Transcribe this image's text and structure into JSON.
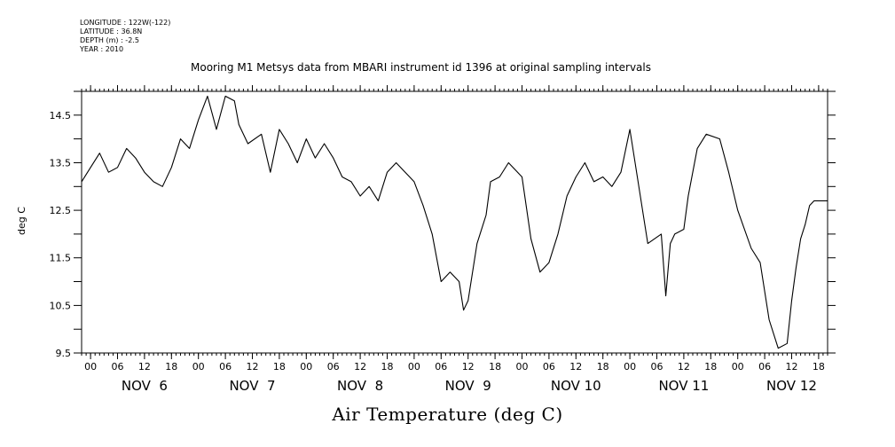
{
  "header": {
    "longitude": "LONGITUDE : 122W(-122)",
    "latitude": "LATITUDE : 36.8N",
    "depth": "DEPTH (m) : -2.5",
    "year": "YEAR : 2010"
  },
  "chart_data": {
    "type": "line",
    "title": "Mooring M1 Metsys data from MBARI instrument id 1396 at original sampling intervals",
    "xlabel": "Air Temperature (deg C)",
    "ylabel": "deg C",
    "ylim": [
      9.5,
      15.0
    ],
    "y_ticks": [
      "9.5",
      "10.5",
      "11.5",
      "12.5",
      "13.5",
      "14.5"
    ],
    "xlim_hours_from": "2010-11-05 22:00",
    "xlim": [
      "2010-11-05 22:00",
      "2010-11-12 20:00"
    ],
    "x_hour_ticks": [
      "00",
      "06",
      "12",
      "18",
      "00",
      "06",
      "12",
      "18",
      "00",
      "06",
      "12",
      "18",
      "00",
      "06",
      "12",
      "18",
      "00",
      "06",
      "12",
      "18",
      "00",
      "06",
      "12",
      "18",
      "00",
      "06",
      "12",
      "18"
    ],
    "day_labels": [
      "NOV  6",
      "NOV  7",
      "NOV  8",
      "NOV  9",
      "NOV 10",
      "NOV 11",
      "NOV 12"
    ],
    "grid": false,
    "legend": "none",
    "series": [
      {
        "x": [
          "2010-11-05 22:00",
          "2010-11-06 00:00",
          "2010-11-06 02:00",
          "2010-11-06 04:00",
          "2010-11-06 06:00",
          "2010-11-06 08:00",
          "2010-11-06 10:00",
          "2010-11-06 12:00",
          "2010-11-06 14:00",
          "2010-11-06 16:00",
          "2010-11-06 18:00",
          "2010-11-06 20:00",
          "2010-11-06 22:00",
          "2010-11-07 00:00",
          "2010-11-07 02:00",
          "2010-11-07 04:00",
          "2010-11-07 06:00",
          "2010-11-07 08:00",
          "2010-11-07 09:00",
          "2010-11-07 11:00",
          "2010-11-07 14:00",
          "2010-11-07 16:00",
          "2010-11-07 18:00",
          "2010-11-07 20:00",
          "2010-11-07 22:00",
          "2010-11-08 00:00",
          "2010-11-08 02:00",
          "2010-11-08 04:00",
          "2010-11-08 06:00",
          "2010-11-08 08:00",
          "2010-11-08 10:00",
          "2010-11-08 12:00",
          "2010-11-08 14:00",
          "2010-11-08 16:00",
          "2010-11-08 18:00",
          "2010-11-08 20:00",
          "2010-11-08 22:00",
          "2010-11-09 00:00",
          "2010-11-09 02:00",
          "2010-11-09 04:00",
          "2010-11-09 06:00",
          "2010-11-09 08:00",
          "2010-11-09 10:00",
          "2010-11-09 11:00",
          "2010-11-09 12:00",
          "2010-11-09 14:00",
          "2010-11-09 16:00",
          "2010-11-09 17:00",
          "2010-11-09 19:00",
          "2010-11-09 21:00",
          "2010-11-10 00:00",
          "2010-11-10 02:00",
          "2010-11-10 04:00",
          "2010-11-10 06:00",
          "2010-11-10 08:00",
          "2010-11-10 10:00",
          "2010-11-10 12:00",
          "2010-11-10 14:00",
          "2010-11-10 16:00",
          "2010-11-10 18:00",
          "2010-11-10 20:00",
          "2010-11-10 22:00",
          "2010-11-11 00:00",
          "2010-11-11 04:00",
          "2010-11-11 07:00",
          "2010-11-11 08:00",
          "2010-11-11 09:00",
          "2010-11-11 10:00",
          "2010-11-11 12:00",
          "2010-11-11 13:00",
          "2010-11-11 15:00",
          "2010-11-11 17:00",
          "2010-11-11 20:00",
          "2010-11-11 22:00",
          "2010-11-12 00:00",
          "2010-11-12 03:00",
          "2010-11-12 05:00",
          "2010-11-12 07:00",
          "2010-11-12 09:00",
          "2010-11-12 11:00",
          "2010-11-12 12:00",
          "2010-11-12 13:00",
          "2010-11-12 14:00",
          "2010-11-12 15:00",
          "2010-11-12 16:00",
          "2010-11-12 17:00",
          "2010-11-12 18:00",
          "2010-11-12 19:00",
          "2010-11-12 20:00"
        ],
        "values": [
          13.1,
          13.4,
          13.7,
          13.3,
          13.4,
          13.8,
          13.6,
          13.3,
          13.1,
          13.0,
          13.4,
          14.0,
          13.8,
          14.4,
          14.9,
          14.2,
          14.9,
          14.8,
          14.3,
          13.9,
          14.1,
          13.3,
          14.2,
          13.9,
          13.5,
          14.0,
          13.6,
          13.9,
          13.6,
          13.2,
          13.1,
          12.8,
          13.0,
          12.7,
          13.3,
          13.5,
          13.3,
          13.1,
          12.6,
          12.0,
          11.0,
          11.2,
          11.0,
          10.4,
          10.6,
          11.8,
          12.4,
          13.1,
          13.2,
          13.5,
          13.2,
          11.9,
          11.2,
          11.4,
          12.0,
          12.8,
          13.2,
          13.5,
          13.1,
          13.2,
          13.0,
          13.3,
          14.2,
          11.8,
          12.0,
          10.7,
          11.8,
          12.0,
          12.1,
          12.8,
          13.8,
          14.1,
          14.0,
          13.3,
          12.5,
          11.7,
          11.4,
          10.2,
          9.6,
          9.7,
          10.6,
          11.3,
          11.9,
          12.2,
          12.6,
          12.7,
          12.7,
          12.7,
          12.7
        ]
      }
    ]
  }
}
